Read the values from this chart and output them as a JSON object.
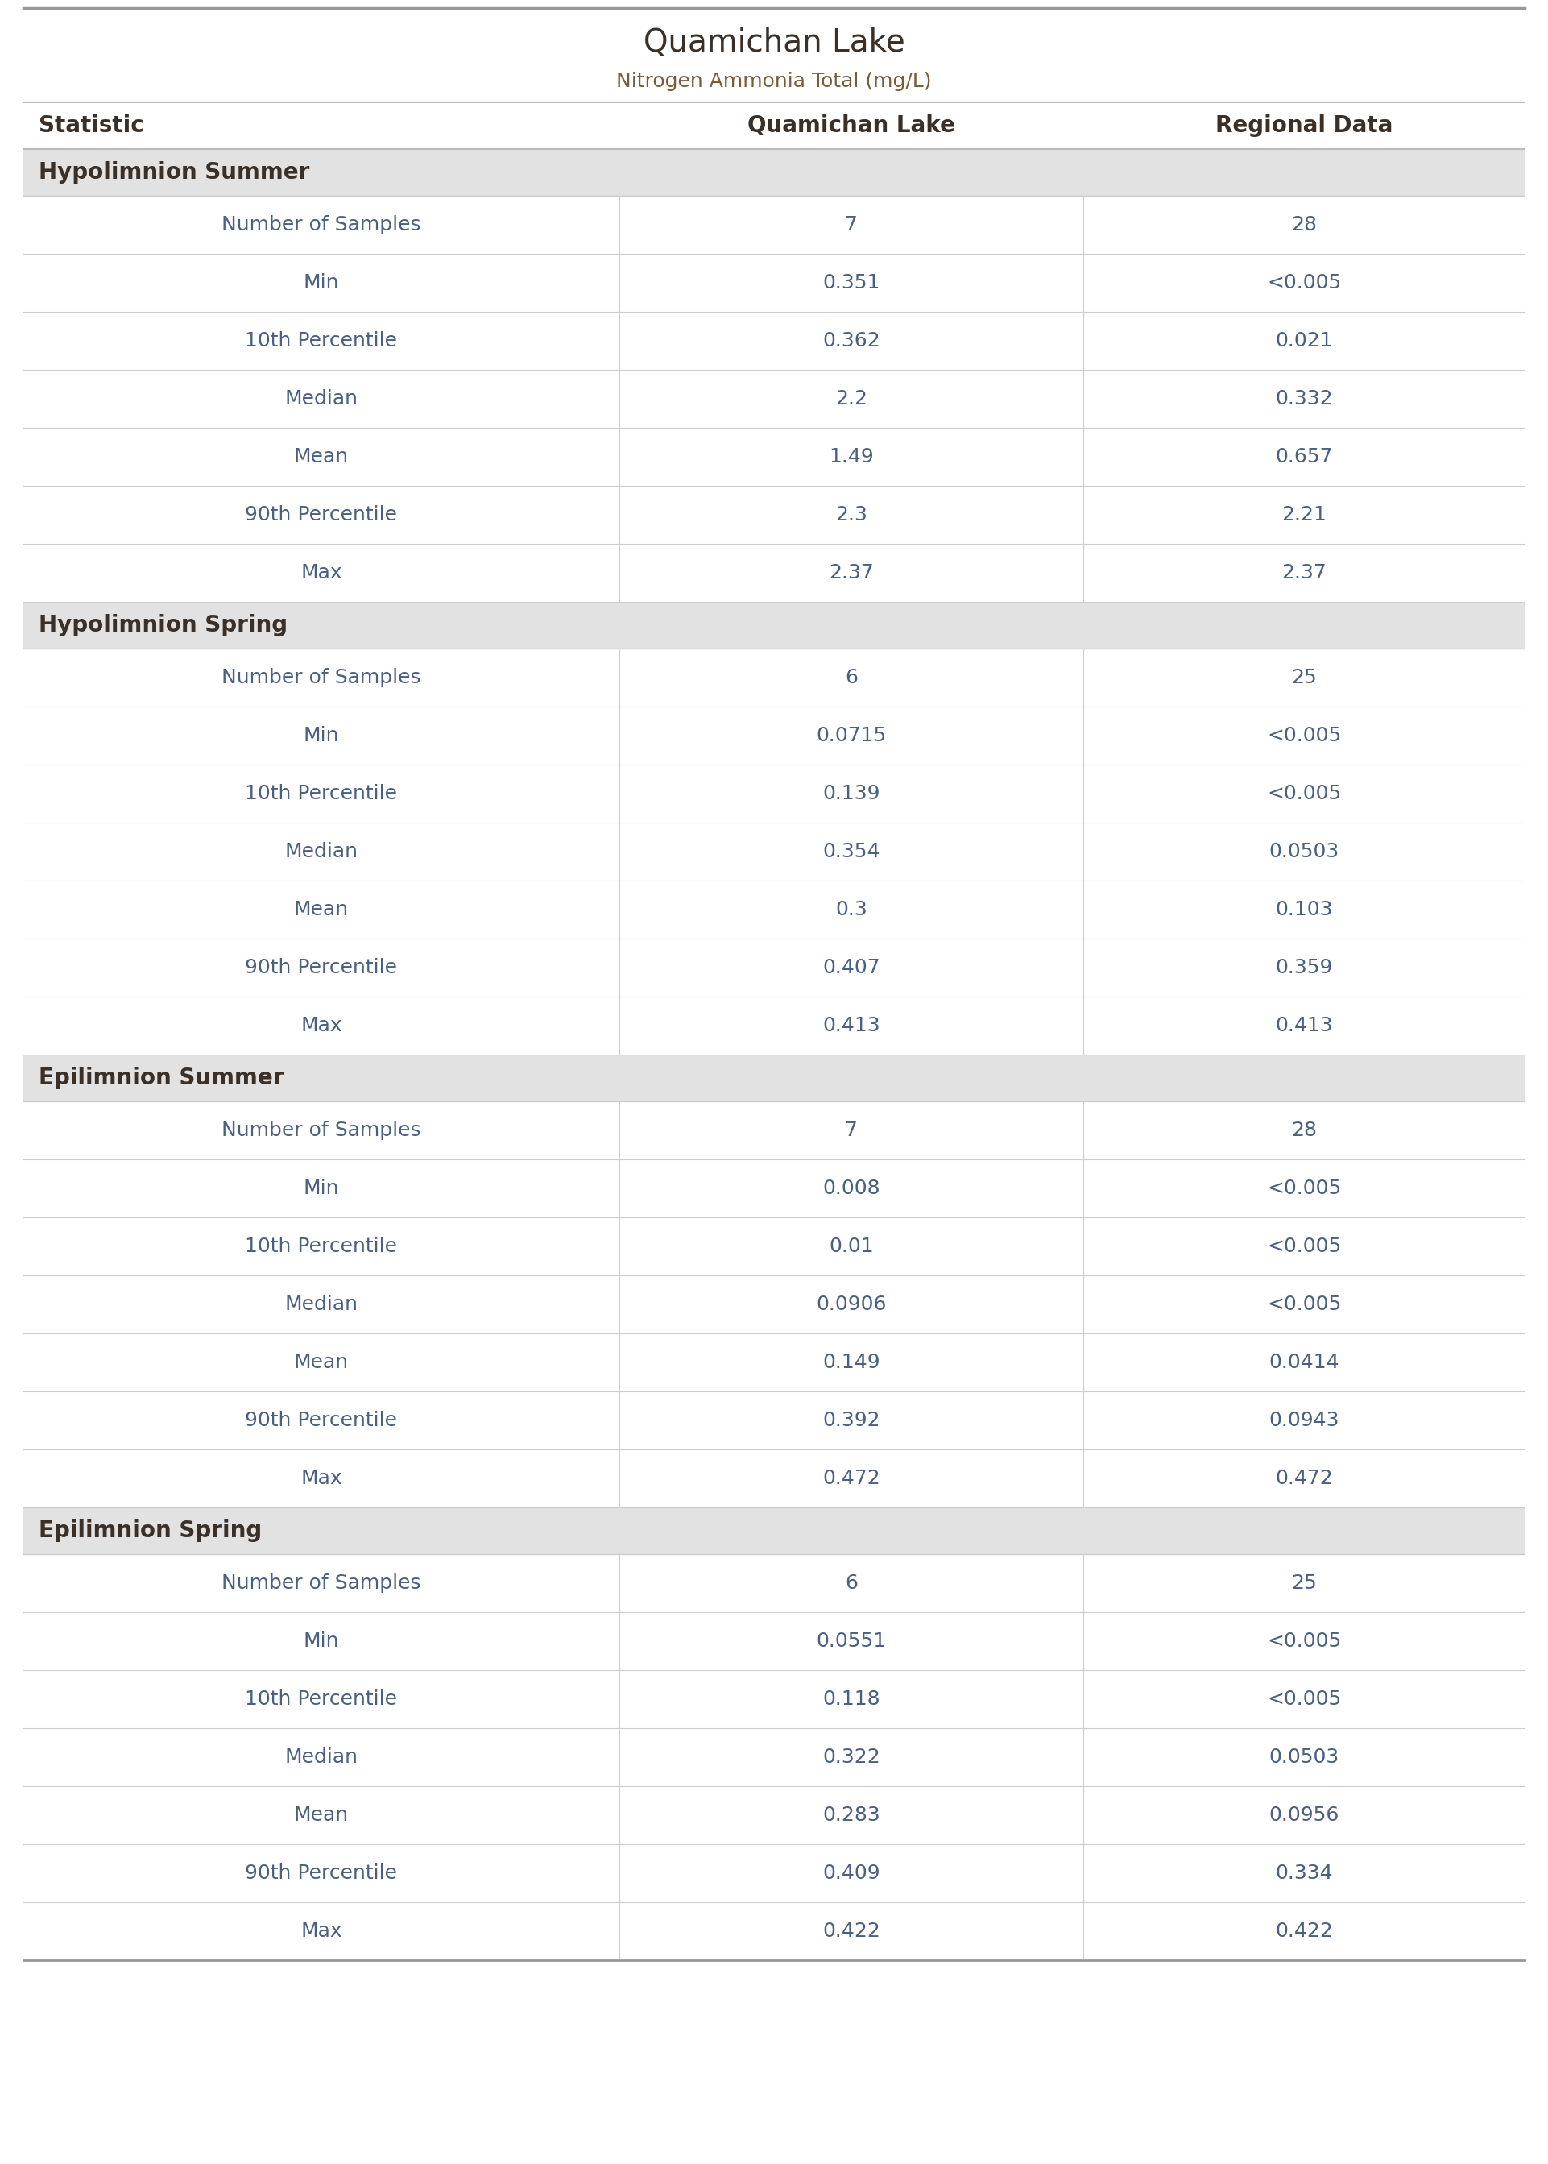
{
  "title": "Quamichan Lake",
  "subtitle": "Nitrogen Ammonia Total (mg/L)",
  "col_headers": [
    "Statistic",
    "Quamichan Lake",
    "Regional Data"
  ],
  "sections": [
    {
      "header": "Hypolimnion Summer",
      "rows": [
        [
          "Number of Samples",
          "7",
          "28"
        ],
        [
          "Min",
          "0.351",
          "<0.005"
        ],
        [
          "10th Percentile",
          "0.362",
          "0.021"
        ],
        [
          "Median",
          "2.2",
          "0.332"
        ],
        [
          "Mean",
          "1.49",
          "0.657"
        ],
        [
          "90th Percentile",
          "2.3",
          "2.21"
        ],
        [
          "Max",
          "2.37",
          "2.37"
        ]
      ]
    },
    {
      "header": "Hypolimnion Spring",
      "rows": [
        [
          "Number of Samples",
          "6",
          "25"
        ],
        [
          "Min",
          "0.0715",
          "<0.005"
        ],
        [
          "10th Percentile",
          "0.139",
          "<0.005"
        ],
        [
          "Median",
          "0.354",
          "0.0503"
        ],
        [
          "Mean",
          "0.3",
          "0.103"
        ],
        [
          "90th Percentile",
          "0.407",
          "0.359"
        ],
        [
          "Max",
          "0.413",
          "0.413"
        ]
      ]
    },
    {
      "header": "Epilimnion Summer",
      "rows": [
        [
          "Number of Samples",
          "7",
          "28"
        ],
        [
          "Min",
          "0.008",
          "<0.005"
        ],
        [
          "10th Percentile",
          "0.01",
          "<0.005"
        ],
        [
          "Median",
          "0.0906",
          "<0.005"
        ],
        [
          "Mean",
          "0.149",
          "0.0414"
        ],
        [
          "90th Percentile",
          "0.392",
          "0.0943"
        ],
        [
          "Max",
          "0.472",
          "0.472"
        ]
      ]
    },
    {
      "header": "Epilimnion Spring",
      "rows": [
        [
          "Number of Samples",
          "6",
          "25"
        ],
        [
          "Min",
          "0.0551",
          "<0.005"
        ],
        [
          "10th Percentile",
          "0.118",
          "<0.005"
        ],
        [
          "Median",
          "0.322",
          "0.0503"
        ],
        [
          "Mean",
          "0.283",
          "0.0956"
        ],
        [
          "90th Percentile",
          "0.409",
          "0.334"
        ],
        [
          "Max",
          "0.422",
          "0.422"
        ]
      ]
    }
  ],
  "title_fontsize": 28,
  "subtitle_fontsize": 18,
  "section_header_fontsize": 20,
  "data_fontsize": 18,
  "col_header_fontsize": 20,
  "title_color": "#3a3028",
  "subtitle_color": "#7a5c38",
  "col_header_color": "#3a3028",
  "section_header_color": "#3a3028",
  "data_color": "#4a6080",
  "section_bg_color": "#e2e2e2",
  "row_bg_white": "#ffffff",
  "divider_color": "#cccccc",
  "top_border_color": "#999999",
  "col_header_border_color": "#bbbbbb",
  "col1_div": 0.4,
  "col2_div": 0.7
}
